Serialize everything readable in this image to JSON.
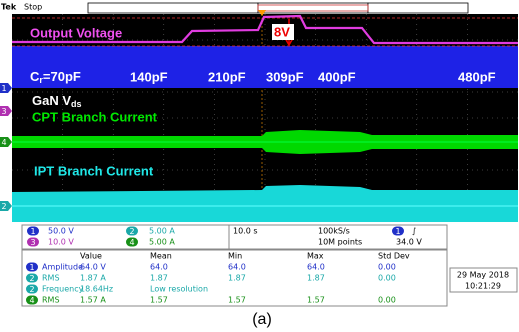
{
  "header": {
    "brand": "Tek",
    "status": "Stop"
  },
  "annotations": {
    "output_voltage": "Output Voltage",
    "delta": "8V",
    "cr_prefix": "C",
    "cr_sub": "r",
    "cr_value": "=70pF",
    "caps": [
      "140pF",
      "210pF",
      "309pF",
      "400pF",
      "480pF"
    ],
    "gan_prefix": "GaN V",
    "gan_sub": "ds",
    "cpt": "CPT Branch Current",
    "ipt": "IPT Branch Current"
  },
  "channel_markers": [
    "1",
    "3",
    "4",
    "2"
  ],
  "settings": {
    "ch1": {
      "num": "1",
      "scale": "50.0 V"
    },
    "ch2": {
      "num": "2",
      "scale": "5.00 A"
    },
    "ch3": {
      "num": "3",
      "scale": "10.0 V"
    },
    "ch4": {
      "num": "4",
      "scale": "5.00 A"
    },
    "timebase": "10.0 s",
    "sample_rate": "100kS/s",
    "record_length": "10M points",
    "trigger_channel": "1",
    "trigger_slope": "∫",
    "trigger_level": "34.0 V"
  },
  "measurements": {
    "headers": [
      "Value",
      "Mean",
      "Min",
      "Max",
      "Std Dev"
    ],
    "rows": [
      [
        "1",
        "Amplitude",
        "64.0 V",
        "64.0",
        "64.0",
        "64.0",
        "0.00"
      ],
      [
        "2",
        "RMS",
        "1.87 A",
        "1.87",
        "1.87",
        "1.87",
        "0.00"
      ],
      [
        "2",
        "Frequency",
        "18.64Hz",
        "Low resolution"
      ],
      [
        "4",
        "RMS",
        "1.57 A",
        "1.57",
        "1.57",
        "1.57",
        "0.00"
      ]
    ]
  },
  "timestamp": {
    "date": "29 May 2018",
    "time": "10:21:29"
  },
  "caption": "(a)"
}
